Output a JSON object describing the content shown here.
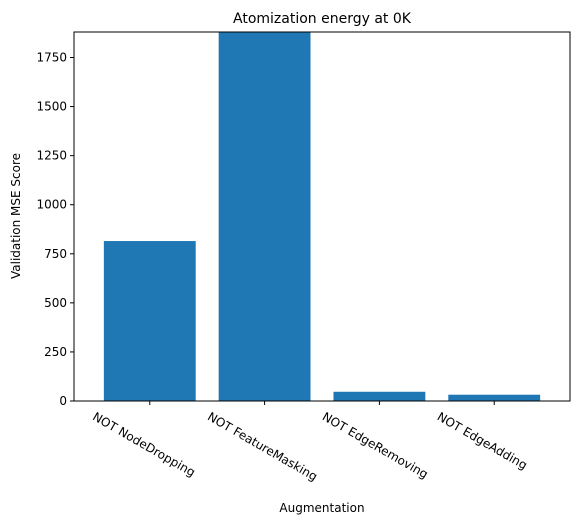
{
  "chart_data": {
    "type": "bar",
    "title": "Atomization energy at 0K",
    "xlabel": "Augmentation",
    "ylabel": "Validation MSE Score",
    "categories": [
      "NOT NodeDropping",
      "NOT FeatureMasking",
      "NOT EdgeRemoving",
      "NOT EdgeAdding"
    ],
    "values": [
      815,
      1880,
      47,
      32
    ],
    "ylim": [
      0,
      1880
    ],
    "yticks": [
      0,
      250,
      500,
      750,
      1000,
      1250,
      1500,
      1750
    ],
    "bar_color": "#1f77b4",
    "grid": false,
    "legend": "none"
  }
}
